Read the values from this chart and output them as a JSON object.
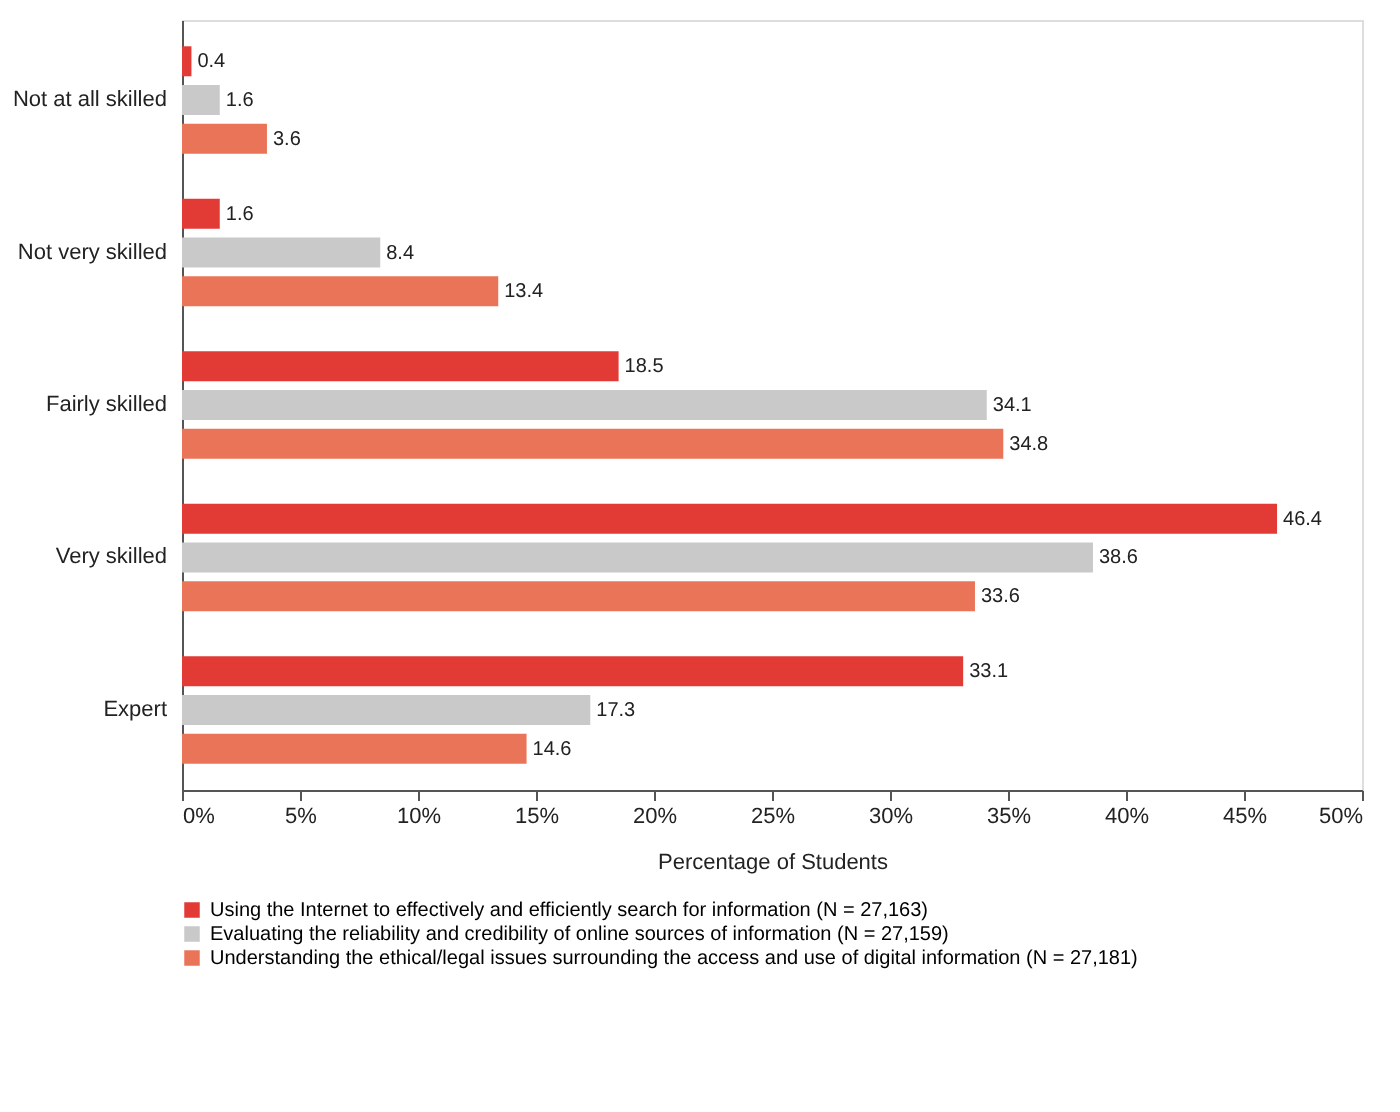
{
  "chart_data": {
    "type": "bar",
    "orientation": "horizontal",
    "xlabel": "Percentage of Students",
    "categories": [
      "Not at all skilled",
      "Not very skilled",
      "Fairly skilled",
      "Very skilled",
      "Expert"
    ],
    "series": [
      {
        "name": "Using the Internet to effectively and efficiently search for information (N = 27,163)",
        "color": "#e23b36",
        "values": [
          0.4,
          1.6,
          18.5,
          46.4,
          33.1
        ]
      },
      {
        "name": "Evaluating the reliability and credibility of online sources of information (N = 27,159)",
        "color": "#c9c9c9",
        "values": [
          1.6,
          8.4,
          34.1,
          38.6,
          17.3
        ]
      },
      {
        "name": "Understanding the ethical/legal issues surrounding the access and use of digital information (N = 27,181)",
        "color": "#ea7458",
        "values": [
          3.6,
          13.4,
          34.8,
          33.6,
          14.6
        ]
      }
    ],
    "xlim": [
      0,
      50
    ],
    "xticks": [
      {
        "value": 0,
        "label": "0%"
      },
      {
        "value": 5,
        "label": "5%"
      },
      {
        "value": 10,
        "label": "10%"
      },
      {
        "value": 15,
        "label": "15%"
      },
      {
        "value": 20,
        "label": "20%"
      },
      {
        "value": 25,
        "label": "25%"
      },
      {
        "value": 30,
        "label": "30%"
      },
      {
        "value": 35,
        "label": "35%"
      },
      {
        "value": 40,
        "label": "40%"
      },
      {
        "value": 45,
        "label": "45%"
      },
      {
        "value": 50,
        "label": "50%"
      }
    ],
    "data_labels": true,
    "grid": false,
    "legend": "bottom"
  }
}
